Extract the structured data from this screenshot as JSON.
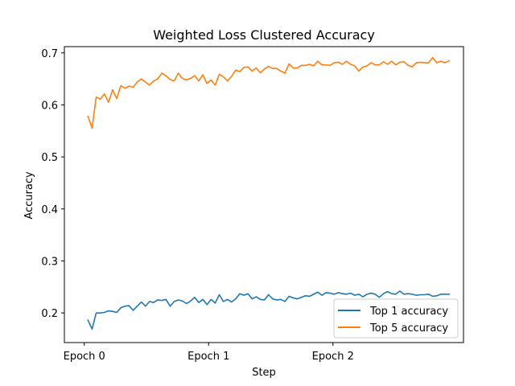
{
  "chart_data": {
    "type": "line",
    "title": "Weighted Loss Clustered Accuracy",
    "xlabel": "Step",
    "ylabel": "Accuracy",
    "xlim": [
      -0.16,
      3.05
    ],
    "ylim": [
      0.143,
      0.712
    ],
    "x_ticks": [
      {
        "value": 0,
        "label": "Epoch 0"
      },
      {
        "value": 1,
        "label": "Epoch 1"
      },
      {
        "value": 2,
        "label": "Epoch 2"
      }
    ],
    "y_ticks": [
      0.2,
      0.3,
      0.4,
      0.5,
      0.6,
      0.7
    ],
    "grid": false,
    "legend_position": "lower-right",
    "x": [
      0.03,
      0.063,
      0.096,
      0.129,
      0.162,
      0.195,
      0.228,
      0.261,
      0.294,
      0.327,
      0.36,
      0.393,
      0.426,
      0.459,
      0.492,
      0.525,
      0.558,
      0.591,
      0.624,
      0.657,
      0.69,
      0.723,
      0.756,
      0.789,
      0.822,
      0.855,
      0.888,
      0.921,
      0.954,
      0.987,
      1.02,
      1.053,
      1.086,
      1.119,
      1.152,
      1.185,
      1.218,
      1.251,
      1.284,
      1.317,
      1.35,
      1.383,
      1.416,
      1.449,
      1.482,
      1.515,
      1.548,
      1.581,
      1.614,
      1.647,
      1.68,
      1.713,
      1.746,
      1.779,
      1.812,
      1.845,
      1.878,
      1.911,
      1.944,
      1.977,
      2.01,
      2.043,
      2.076,
      2.109,
      2.142,
      2.175,
      2.208,
      2.241,
      2.274,
      2.307,
      2.34,
      2.373,
      2.406,
      2.439,
      2.472,
      2.505,
      2.538,
      2.571,
      2.604,
      2.637,
      2.67,
      2.703,
      2.736,
      2.769,
      2.802,
      2.835,
      2.868,
      2.901,
      2.934
    ],
    "series": [
      {
        "name": "Top 1 accuracy",
        "color": "#1f77b4",
        "values": [
          0.186,
          0.169,
          0.2,
          0.2,
          0.201,
          0.204,
          0.203,
          0.201,
          0.21,
          0.213,
          0.214,
          0.205,
          0.213,
          0.221,
          0.213,
          0.222,
          0.22,
          0.225,
          0.224,
          0.226,
          0.213,
          0.222,
          0.225,
          0.223,
          0.218,
          0.223,
          0.23,
          0.22,
          0.226,
          0.216,
          0.226,
          0.219,
          0.235,
          0.222,
          0.226,
          0.221,
          0.227,
          0.237,
          0.234,
          0.237,
          0.227,
          0.231,
          0.226,
          0.225,
          0.235,
          0.227,
          0.225,
          0.226,
          0.222,
          0.232,
          0.229,
          0.227,
          0.23,
          0.233,
          0.232,
          0.236,
          0.24,
          0.234,
          0.239,
          0.238,
          0.236,
          0.239,
          0.237,
          0.236,
          0.238,
          0.234,
          0.236,
          0.231,
          0.236,
          0.238,
          0.236,
          0.23,
          0.237,
          0.241,
          0.237,
          0.236,
          0.242,
          0.236,
          0.237,
          0.236,
          0.234,
          0.235,
          0.235,
          0.236,
          0.232,
          0.233,
          0.236,
          0.236,
          0.236
        ]
      },
      {
        "name": "Top 5 accuracy",
        "color": "#ff7f0e",
        "values": [
          0.578,
          0.555,
          0.615,
          0.611,
          0.621,
          0.605,
          0.629,
          0.612,
          0.637,
          0.632,
          0.636,
          0.634,
          0.644,
          0.65,
          0.644,
          0.638,
          0.646,
          0.65,
          0.661,
          0.656,
          0.649,
          0.646,
          0.661,
          0.651,
          0.648,
          0.651,
          0.656,
          0.646,
          0.658,
          0.641,
          0.648,
          0.638,
          0.659,
          0.654,
          0.646,
          0.655,
          0.667,
          0.664,
          0.672,
          0.673,
          0.665,
          0.671,
          0.662,
          0.669,
          0.674,
          0.67,
          0.67,
          0.665,
          0.661,
          0.679,
          0.671,
          0.671,
          0.676,
          0.676,
          0.678,
          0.675,
          0.684,
          0.677,
          0.677,
          0.676,
          0.681,
          0.682,
          0.678,
          0.684,
          0.678,
          0.675,
          0.665,
          0.673,
          0.675,
          0.681,
          0.677,
          0.677,
          0.683,
          0.678,
          0.684,
          0.677,
          0.682,
          0.683,
          0.676,
          0.673,
          0.681,
          0.682,
          0.681,
          0.681,
          0.691,
          0.681,
          0.684,
          0.681,
          0.685
        ]
      }
    ]
  }
}
